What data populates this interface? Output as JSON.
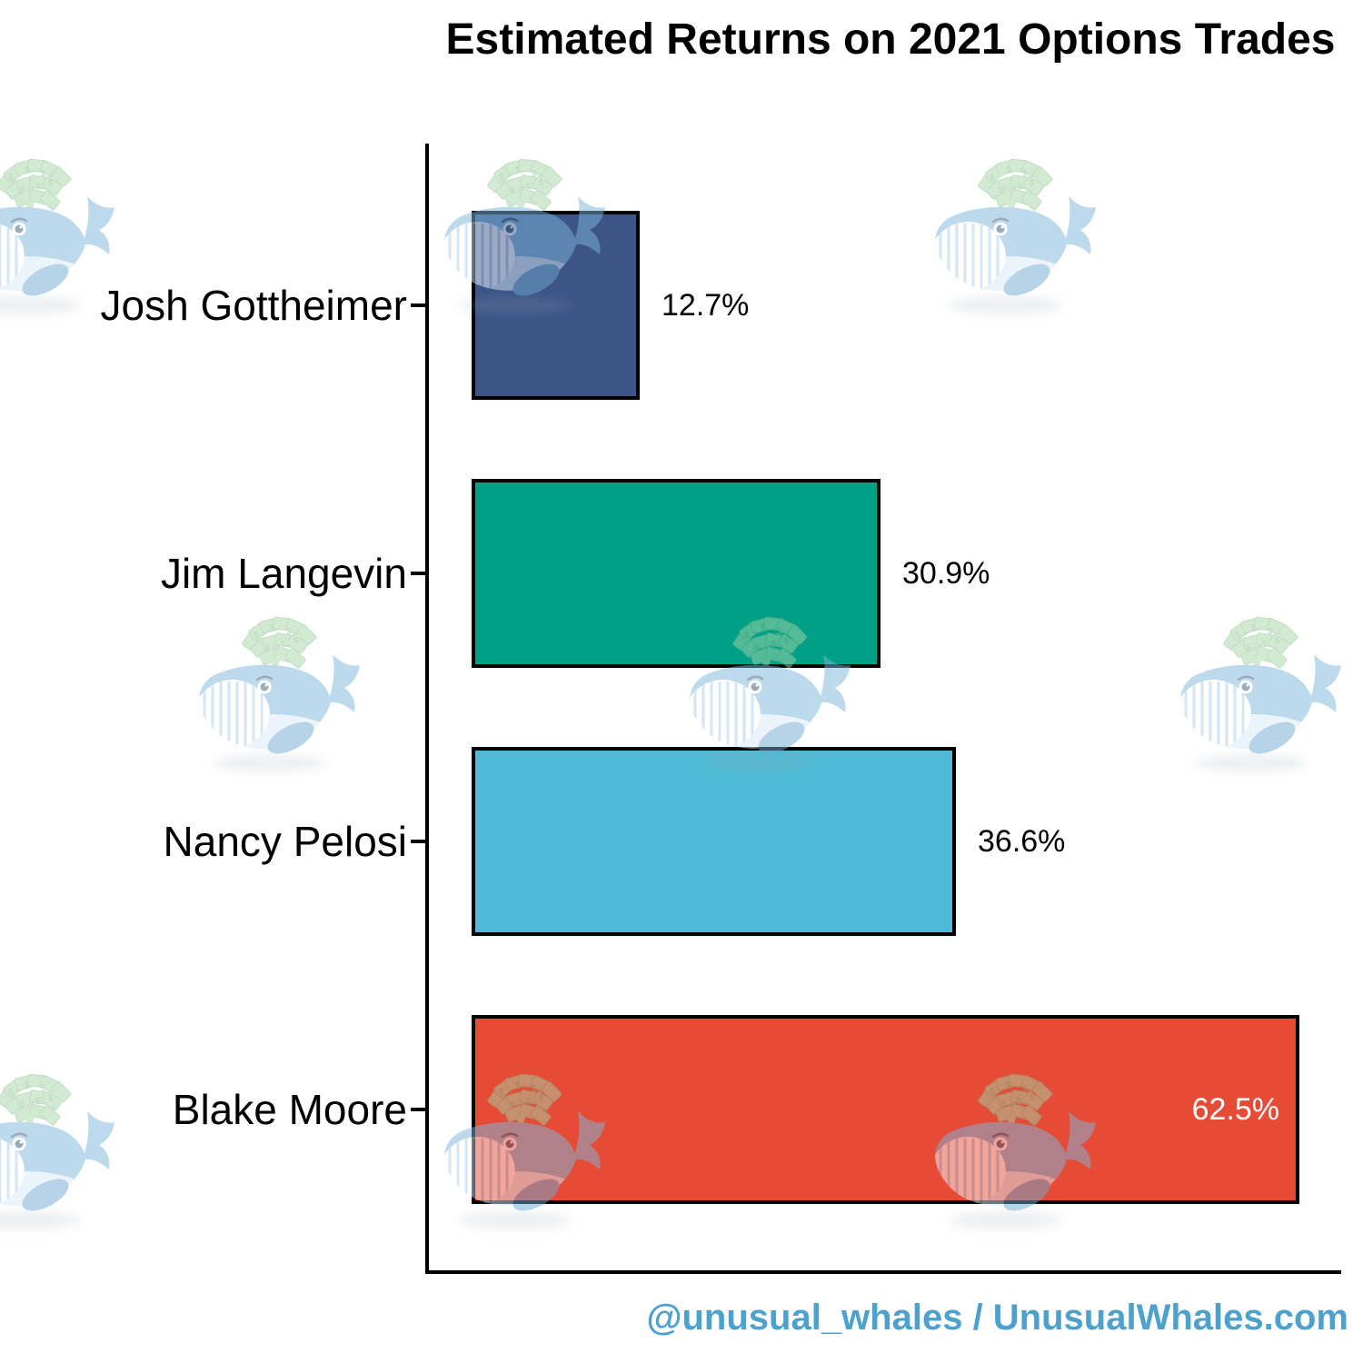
{
  "title": "Estimated Returns on 2021 Options Trades",
  "attribution": "@unusual_whales / UnusualWhales.com",
  "watermark_icon": "whale-with-money-spout",
  "colors": {
    "axis": "#000000",
    "bar_border": "#000000",
    "attribution_blue": "#4EA1CC",
    "watermark_body_blue": "#7EB7DC",
    "watermark_money_green": "#A7D4A7"
  },
  "chart_data": {
    "type": "bar",
    "orientation": "horizontal",
    "title": "Estimated Returns on 2021 Options Trades",
    "categories": [
      "Josh Gottheimer",
      "Jim Langevin",
      "Nancy Pelosi",
      "Blake Moore"
    ],
    "values": [
      12.7,
      30.9,
      36.6,
      62.5
    ],
    "value_labels": [
      "12.7%",
      "30.9%",
      "36.6%",
      "62.5%"
    ],
    "bar_colors": [
      "#3C5488",
      "#00A087",
      "#4DBBD5",
      "#E64B35"
    ],
    "label_position": [
      "outside",
      "outside",
      "outside",
      "inside"
    ],
    "xlabel": "",
    "ylabel": "",
    "xlim": [
      0,
      65
    ],
    "grid": false,
    "legend": false
  }
}
